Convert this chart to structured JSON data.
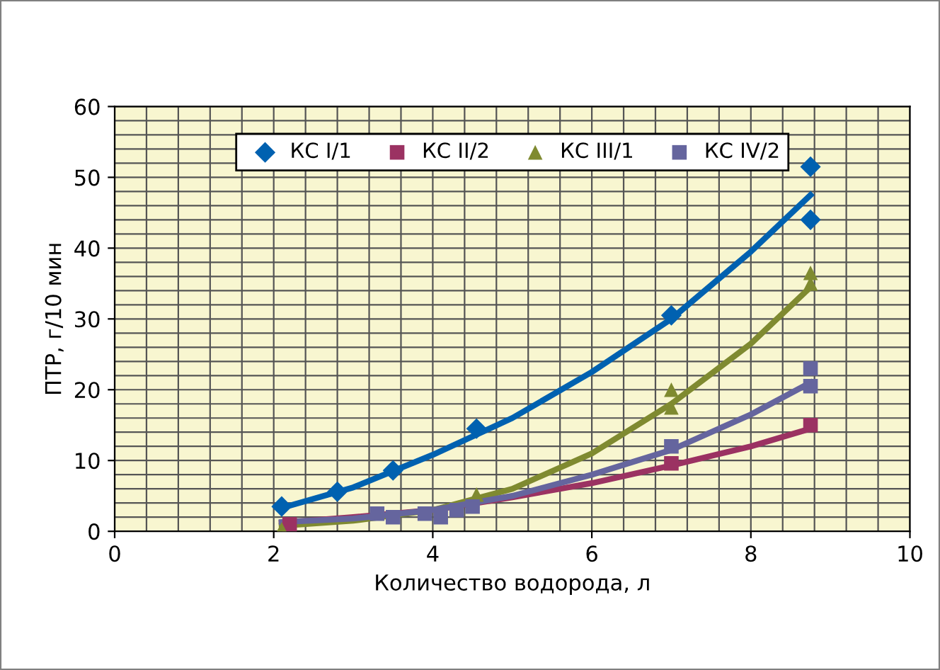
{
  "chart_data": {
    "type": "scatter",
    "xlabel": "Количество водорода, л",
    "ylabel": "ПТР, г/10 мин",
    "xlim": [
      0,
      10
    ],
    "xticks": [
      0,
      2,
      4,
      6,
      8,
      10
    ],
    "ylim": [
      0,
      60
    ],
    "yticks": [
      0,
      10,
      20,
      30,
      40,
      50,
      60
    ],
    "grid": true,
    "legend": "top",
    "series": [
      {
        "name": "КС I/1",
        "color": "#0061b0",
        "marker": "diamond",
        "x": [
          2.1,
          2.8,
          3.5,
          4.55,
          7.0,
          8.75,
          8.75
        ],
        "values": [
          3.5,
          5.6,
          8.6,
          14.5,
          30.5,
          51.5,
          44
        ]
      },
      {
        "name": "КС II/2",
        "color": "#9b3262",
        "marker": "square",
        "x": [
          2.2,
          7.0,
          8.75
        ],
        "values": [
          1.0,
          9.6,
          15
        ]
      },
      {
        "name": "КС III/1",
        "color": "#7f8a30",
        "marker": "triangle",
        "x": [
          2.1,
          4.55,
          7.0,
          7.0,
          8.75,
          8.75
        ],
        "values": [
          0.3,
          5.2,
          17.5,
          20,
          35,
          36.5
        ]
      },
      {
        "name": "КС IV/2",
        "color": "#65659e",
        "marker": "square",
        "x": [
          3.3,
          3.5,
          3.9,
          4.1,
          4.3,
          4.5,
          7.0,
          8.75,
          8.75
        ],
        "values": [
          2.5,
          2,
          2.5,
          2,
          3,
          3.5,
          12,
          20.5,
          23
        ]
      },
      {
        "type": "line",
        "color": "#0061b0",
        "x": [
          2.1,
          3,
          4,
          5,
          6,
          7,
          8,
          8.75
        ],
        "values": [
          3.3,
          6.2,
          10.8,
          16,
          22.5,
          30,
          39.5,
          47.5
        ]
      },
      {
        "type": "line",
        "color": "#9b3262",
        "x": [
          2.1,
          3,
          4,
          5,
          6,
          7,
          8,
          8.75
        ],
        "values": [
          1.2,
          2,
          3,
          4.8,
          6.8,
          9.3,
          12,
          14.5
        ]
      },
      {
        "type": "line",
        "color": "#7f8a30",
        "x": [
          2.1,
          3,
          4,
          5,
          6,
          7,
          8,
          8.75
        ],
        "values": [
          0.8,
          1.5,
          3,
          6,
          11,
          18,
          26.5,
          34.5
        ]
      },
      {
        "type": "line",
        "color": "#65659e",
        "x": [
          2.1,
          3,
          4,
          5,
          6,
          7,
          8,
          8.75
        ],
        "values": [
          1.3,
          1.8,
          3,
          5,
          8,
          11.5,
          16.5,
          21
        ]
      }
    ]
  }
}
